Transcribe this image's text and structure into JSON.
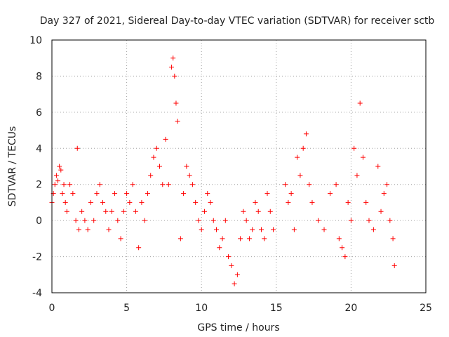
{
  "chart_data": {
    "type": "scatter",
    "title": "Day 327 of 2021, Sidereal Day-to-day VTEC variation (SDTVAR) for receiver sctb",
    "xlabel": "GPS time / hours",
    "ylabel": "SDTVAR / TECUs",
    "xlim": [
      0,
      25
    ],
    "ylim": [
      -4,
      10
    ],
    "xticks": [
      "0",
      "5",
      "10",
      "15",
      "20",
      "25"
    ],
    "yticks": [
      "-4",
      "-2",
      "0",
      "2",
      "4",
      "6",
      "8",
      "10"
    ],
    "grid": true,
    "marker": "plus",
    "color": "#ff0000",
    "series": [
      {
        "name": "SDTVAR",
        "x": [
          0.0,
          0.1,
          0.2,
          0.3,
          0.4,
          0.5,
          0.6,
          0.7,
          0.8,
          0.9,
          1.0,
          1.2,
          1.4,
          1.6,
          1.7,
          1.8,
          2.0,
          2.2,
          2.4,
          2.6,
          2.8,
          3.0,
          3.2,
          3.4,
          3.6,
          3.8,
          4.0,
          4.2,
          4.4,
          4.6,
          4.8,
          5.0,
          5.2,
          5.4,
          5.6,
          5.8,
          6.0,
          6.2,
          6.4,
          6.6,
          6.8,
          7.0,
          7.2,
          7.4,
          7.6,
          7.8,
          8.0,
          8.1,
          8.2,
          8.3,
          8.4,
          8.6,
          8.8,
          9.0,
          9.2,
          9.4,
          9.6,
          9.8,
          10.0,
          10.2,
          10.4,
          10.6,
          10.8,
          11.0,
          11.2,
          11.4,
          11.6,
          11.8,
          12.0,
          12.2,
          12.4,
          12.6,
          12.8,
          13.0,
          13.2,
          13.4,
          13.6,
          13.8,
          14.0,
          14.2,
          14.4,
          14.6,
          14.8,
          15.6,
          15.8,
          16.0,
          16.2,
          16.4,
          16.6,
          16.8,
          17.0,
          17.2,
          17.4,
          17.8,
          18.2,
          18.6,
          19.0,
          19.2,
          19.4,
          19.6,
          19.8,
          20.0,
          20.2,
          20.4,
          20.6,
          20.8,
          21.0,
          21.2,
          21.5,
          21.8,
          22.0,
          22.2,
          22.4,
          22.6,
          22.8,
          22.9
        ],
        "y": [
          1.0,
          1.5,
          2.0,
          2.5,
          2.2,
          3.0,
          2.8,
          1.5,
          2.0,
          1.0,
          0.5,
          2.0,
          1.5,
          0.0,
          4.0,
          -0.5,
          0.5,
          0.0,
          -0.5,
          1.0,
          0.0,
          1.5,
          2.0,
          1.0,
          0.5,
          -0.5,
          0.5,
          1.5,
          0.0,
          -1.0,
          0.5,
          1.5,
          1.0,
          2.0,
          0.5,
          -1.5,
          1.0,
          0.0,
          1.5,
          2.5,
          3.5,
          4.0,
          3.0,
          2.0,
          4.5,
          2.0,
          8.5,
          9.0,
          8.0,
          6.5,
          5.5,
          -1.0,
          1.5,
          3.0,
          2.5,
          2.0,
          1.0,
          0.0,
          -0.5,
          0.5,
          1.5,
          1.0,
          0.0,
          -0.5,
          -1.5,
          -1.0,
          0.0,
          -2.0,
          -2.5,
          -3.5,
          -3.0,
          -1.0,
          0.5,
          0.0,
          -1.0,
          -0.5,
          1.0,
          0.5,
          -0.5,
          -1.0,
          1.5,
          0.5,
          -0.5,
          2.0,
          1.0,
          1.5,
          -0.5,
          3.5,
          2.5,
          4.0,
          4.8,
          2.0,
          1.0,
          0.0,
          -0.5,
          1.5,
          2.0,
          -1.0,
          -1.5,
          -2.0,
          1.0,
          0.0,
          4.0,
          2.5,
          6.5,
          3.5,
          1.0,
          0.0,
          -0.5,
          3.0,
          0.5,
          1.5,
          2.0,
          0.0,
          -1.0,
          -2.5
        ]
      }
    ]
  }
}
